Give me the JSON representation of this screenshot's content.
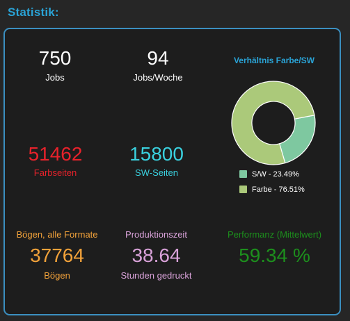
{
  "window": {
    "title": "Statistik:"
  },
  "stats": {
    "jobs": {
      "value": "750",
      "label": "Jobs"
    },
    "jobs_per_week": {
      "value": "94",
      "label": "Jobs/Woche"
    },
    "color_pages": {
      "value": "51462",
      "label": "Farbseiten",
      "color": "#e8222b"
    },
    "bw_pages": {
      "value": "15800",
      "label": "SW-Seiten",
      "color": "#3ad1df"
    },
    "sheets": {
      "caption": "Bögen, alle Formate",
      "value": "37764",
      "label": "Bögen",
      "color": "#f2a23a"
    },
    "production_time": {
      "caption": "Produktionszeit",
      "value": "38.64",
      "label": "Stunden gedruckt",
      "color": "#d9a2d9"
    },
    "performance": {
      "caption": "Performanz (Mittelwert)",
      "value": "59.34 %",
      "color": "#1d8f1d"
    }
  },
  "chart_data": {
    "type": "pie",
    "title": "Verhältnis Farbe/SW",
    "donut": true,
    "categories": [
      "S/W",
      "Farbe"
    ],
    "values": [
      23.49,
      76.51
    ],
    "colors": [
      "#7ec8a0",
      "#abc97a"
    ],
    "legend_labels": [
      "S/W - 23.49%",
      "Farbe - 76.51%"
    ],
    "legend_position": "bottom"
  },
  "colors": {
    "accent": "#2aa3d6",
    "panel_border": "#3b8fc0",
    "panel_background": "#1d1d1d"
  }
}
